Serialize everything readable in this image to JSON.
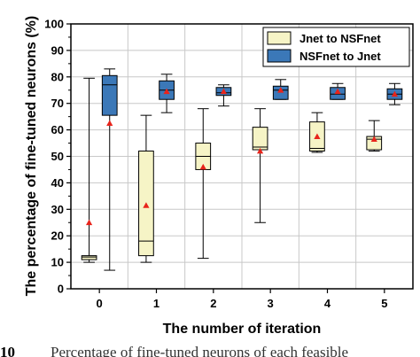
{
  "chart_data": {
    "type": "box",
    "xlabel": "The number of iteration",
    "ylabel": "The percentage of fine-tuned neurons (%)",
    "ylim": [
      0,
      100
    ],
    "y_ticks": [
      0,
      10,
      20,
      30,
      40,
      50,
      60,
      70,
      80,
      90,
      100
    ],
    "categories": [
      "0",
      "1",
      "2",
      "3",
      "4",
      "5"
    ],
    "grid": true,
    "legend_position": "top-right",
    "series": [
      {
        "name": "Jnet to NSFnet",
        "color": "#f6f4c6",
        "boxes": [
          {
            "whisker_low": 10,
            "q1": 11,
            "median": 12,
            "q3": 12.5,
            "whisker_high": 79.5,
            "mean": 25
          },
          {
            "whisker_low": 10,
            "q1": 12.5,
            "median": 18,
            "q3": 52,
            "whisker_high": 65.5,
            "mean": 31.5
          },
          {
            "whisker_low": 11.5,
            "q1": 45,
            "median": 50,
            "q3": 55,
            "whisker_high": 68,
            "mean": 46
          },
          {
            "whisker_low": 25,
            "q1": 52.5,
            "median": 53.5,
            "q3": 61,
            "whisker_high": 68,
            "mean": 52
          },
          {
            "whisker_low": 51.5,
            "q1": 52,
            "median": 53,
            "q3": 63,
            "whisker_high": 66.5,
            "mean": 57.5
          },
          {
            "whisker_low": 52,
            "q1": 52.5,
            "median": 56.5,
            "q3": 57.5,
            "whisker_high": 63.5,
            "mean": 56.5
          }
        ]
      },
      {
        "name": "NSFnet to Jnet",
        "color": "#3b78b8",
        "boxes": [
          {
            "whisker_low": 7,
            "q1": 65.5,
            "median": 77,
            "q3": 80.5,
            "whisker_high": 83,
            "mean": 62.5
          },
          {
            "whisker_low": 66.5,
            "q1": 71.5,
            "median": 75,
            "q3": 78.5,
            "whisker_high": 81,
            "mean": 74.5
          },
          {
            "whisker_low": 69,
            "q1": 73,
            "median": 74,
            "q3": 76,
            "whisker_high": 77,
            "mean": 74.5
          },
          {
            "whisker_low": 71.5,
            "q1": 71.5,
            "median": 75,
            "q3": 76.5,
            "whisker_high": 79,
            "mean": 75
          },
          {
            "whisker_low": 71.5,
            "q1": 71.5,
            "median": 73.5,
            "q3": 76,
            "whisker_high": 77.5,
            "mean": 74.5
          },
          {
            "whisker_low": 69.5,
            "q1": 71.5,
            "median": 73.5,
            "q3": 75.5,
            "whisker_high": 77.5,
            "mean": 73.5
          }
        ]
      }
    ],
    "mean_marker_color": "#e8241b"
  },
  "caption": {
    "number": "10",
    "text": "Percentage of fine-tuned neurons of each feasible"
  }
}
